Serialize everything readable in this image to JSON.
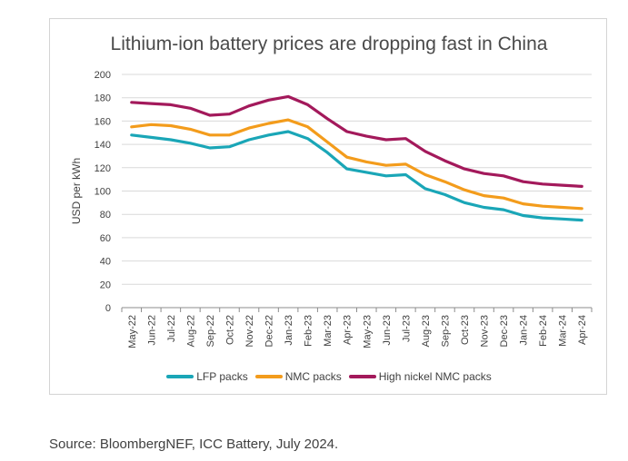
{
  "chart_data": {
    "type": "line",
    "title": "Lithium-ion battery prices are dropping fast in China",
    "ylabel": "USD per kWh",
    "xlabel": "",
    "ylim": [
      0,
      200
    ],
    "yticks": [
      0,
      20,
      40,
      60,
      80,
      100,
      120,
      140,
      160,
      180,
      200
    ],
    "grid": "horizontal",
    "legend_position": "bottom",
    "categories": [
      "May-22",
      "Jun-22",
      "Jul-22",
      "Aug-22",
      "Sep-22",
      "Oct-22",
      "Nov-22",
      "Dec-22",
      "Jan-23",
      "Feb-23",
      "Mar-23",
      "Apr-23",
      "May-23",
      "Jun-23",
      "Jul-23",
      "Aug-23",
      "Sep-23",
      "Oct-23",
      "Nov-23",
      "Dec-23",
      "Jan-24",
      "Feb-24",
      "Mar-24",
      "Apr-24"
    ],
    "series": [
      {
        "name": "LFP packs",
        "color": "#1aa6b7",
        "values": [
          148,
          146,
          144,
          141,
          137,
          138,
          144,
          148,
          151,
          145,
          133,
          119,
          116,
          113,
          114,
          102,
          97,
          90,
          86,
          84,
          79,
          77,
          76,
          75
        ]
      },
      {
        "name": "NMC packs",
        "color": "#f39c1c",
        "values": [
          155,
          157,
          156,
          153,
          148,
          148,
          154,
          158,
          161,
          155,
          142,
          129,
          125,
          122,
          123,
          114,
          108,
          101,
          96,
          94,
          89,
          87,
          86,
          85
        ]
      },
      {
        "name": "High nickel NMC packs",
        "color": "#a3195b",
        "values": [
          176,
          175,
          174,
          171,
          165,
          166,
          173,
          178,
          181,
          174,
          162,
          151,
          147,
          144,
          145,
          134,
          126,
          119,
          115,
          113,
          108,
          106,
          105,
          104
        ]
      }
    ]
  },
  "source": "Source: BloombergNEF, ICC Battery, July 2024."
}
